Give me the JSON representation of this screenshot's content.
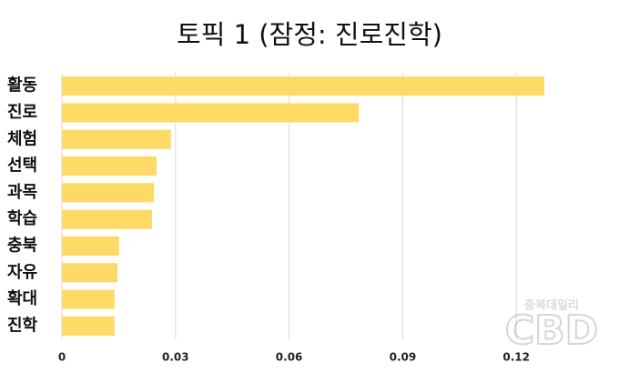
{
  "chart_data": {
    "type": "barh",
    "title": "토픽 1 (잠정: 진로진학)",
    "categories": [
      "활동",
      "진로",
      "체험",
      "선택",
      "과목",
      "학습",
      "충북",
      "자유",
      "확대",
      "진학"
    ],
    "values": [
      0.1274,
      0.0784,
      0.0288,
      0.025,
      0.0243,
      0.0238,
      0.0151,
      0.0147,
      0.0139,
      0.0139
    ],
    "color": "#ffd966",
    "xlim": [
      0,
      0.13
    ],
    "xticks": [
      0,
      0.03,
      0.06,
      0.09,
      0.12
    ],
    "grid": true
  },
  "watermark": {
    "caption": "충북데일리",
    "logo": "CBD"
  }
}
